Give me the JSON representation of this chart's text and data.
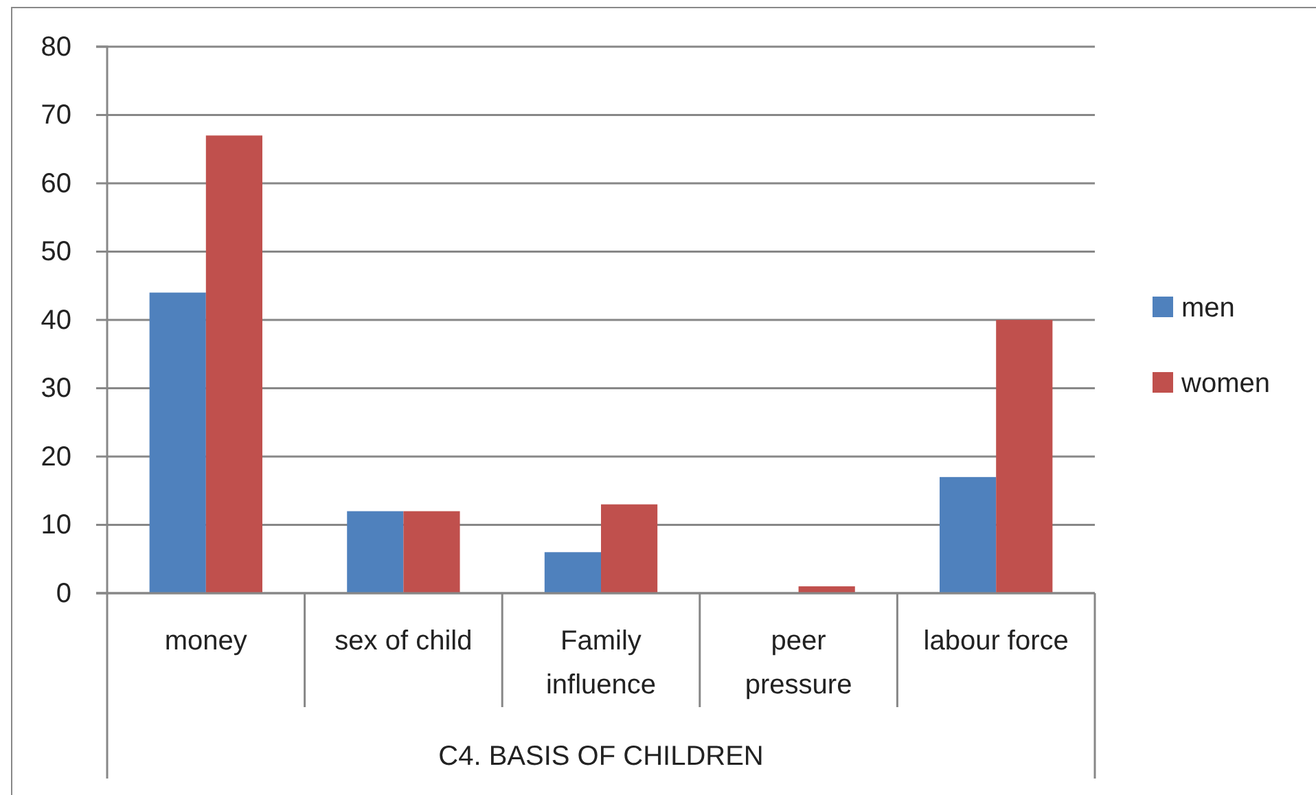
{
  "chart_data": {
    "type": "bar",
    "xlabel": "C4. BASIS OF CHILDREN",
    "categories": [
      "money",
      "sex of child",
      "Family influence",
      "peer pressure",
      "labour force"
    ],
    "series": [
      {
        "name": "men",
        "color": "#4f81bd",
        "values": [
          44,
          12,
          6,
          0,
          17
        ]
      },
      {
        "name": "women",
        "color": "#c0504d",
        "values": [
          67,
          12,
          13,
          1,
          40
        ]
      }
    ],
    "ylim": [
      0,
      80
    ],
    "yticks": [
      0,
      10,
      20,
      30,
      40,
      50,
      60,
      70,
      80
    ],
    "grid": "y",
    "legend": "right"
  }
}
